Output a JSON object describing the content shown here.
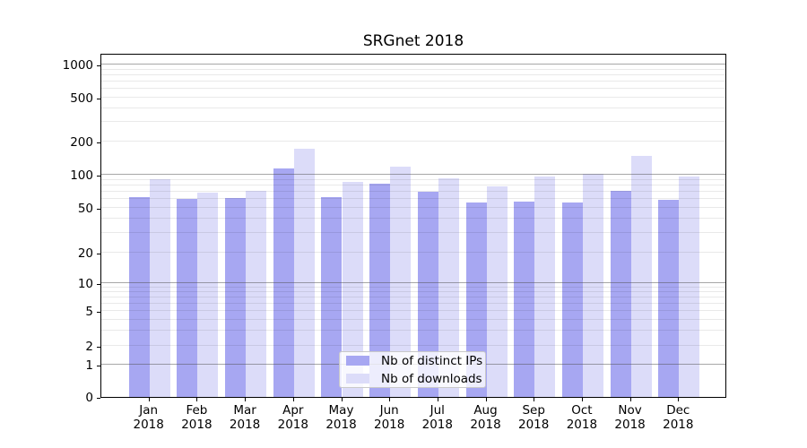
{
  "figure": {
    "background": "#ffffff"
  },
  "chart_data": {
    "type": "bar",
    "title": "SRGnet 2018",
    "xlabel": "",
    "ylabel": "",
    "yscale": "symlog",
    "ylim": [
      0,
      1276
    ],
    "y_ticks": [
      0,
      1,
      2,
      5,
      10,
      20,
      50,
      100,
      200,
      500,
      1000
    ],
    "grid": "on",
    "legend_position": "lower center",
    "categories": [
      {
        "month": "Jan",
        "year": "2018"
      },
      {
        "month": "Feb",
        "year": "2018"
      },
      {
        "month": "Mar",
        "year": "2018"
      },
      {
        "month": "Apr",
        "year": "2018"
      },
      {
        "month": "May",
        "year": "2018"
      },
      {
        "month": "Jun",
        "year": "2018"
      },
      {
        "month": "Jul",
        "year": "2018"
      },
      {
        "month": "Aug",
        "year": "2018"
      },
      {
        "month": "Sep",
        "year": "2018"
      },
      {
        "month": "Oct",
        "year": "2018"
      },
      {
        "month": "Nov",
        "year": "2018"
      },
      {
        "month": "Dec",
        "year": "2018"
      }
    ],
    "series": [
      {
        "name": "Nb of distinct IPs",
        "color": "#a7a7f2",
        "values": [
          63,
          60,
          61,
          115,
          63,
          83,
          70,
          56,
          57,
          56,
          72,
          59
        ]
      },
      {
        "name": "Nb of downloads",
        "color": "#dcdcf9",
        "values": [
          91,
          69,
          72,
          172,
          86,
          118,
          93,
          78,
          97,
          102,
          148,
          97
        ]
      }
    ],
    "colors": {
      "major_grid": "#b0b0b0",
      "minor_grid": "#e9e9e9",
      "axis": "#000000"
    }
  }
}
